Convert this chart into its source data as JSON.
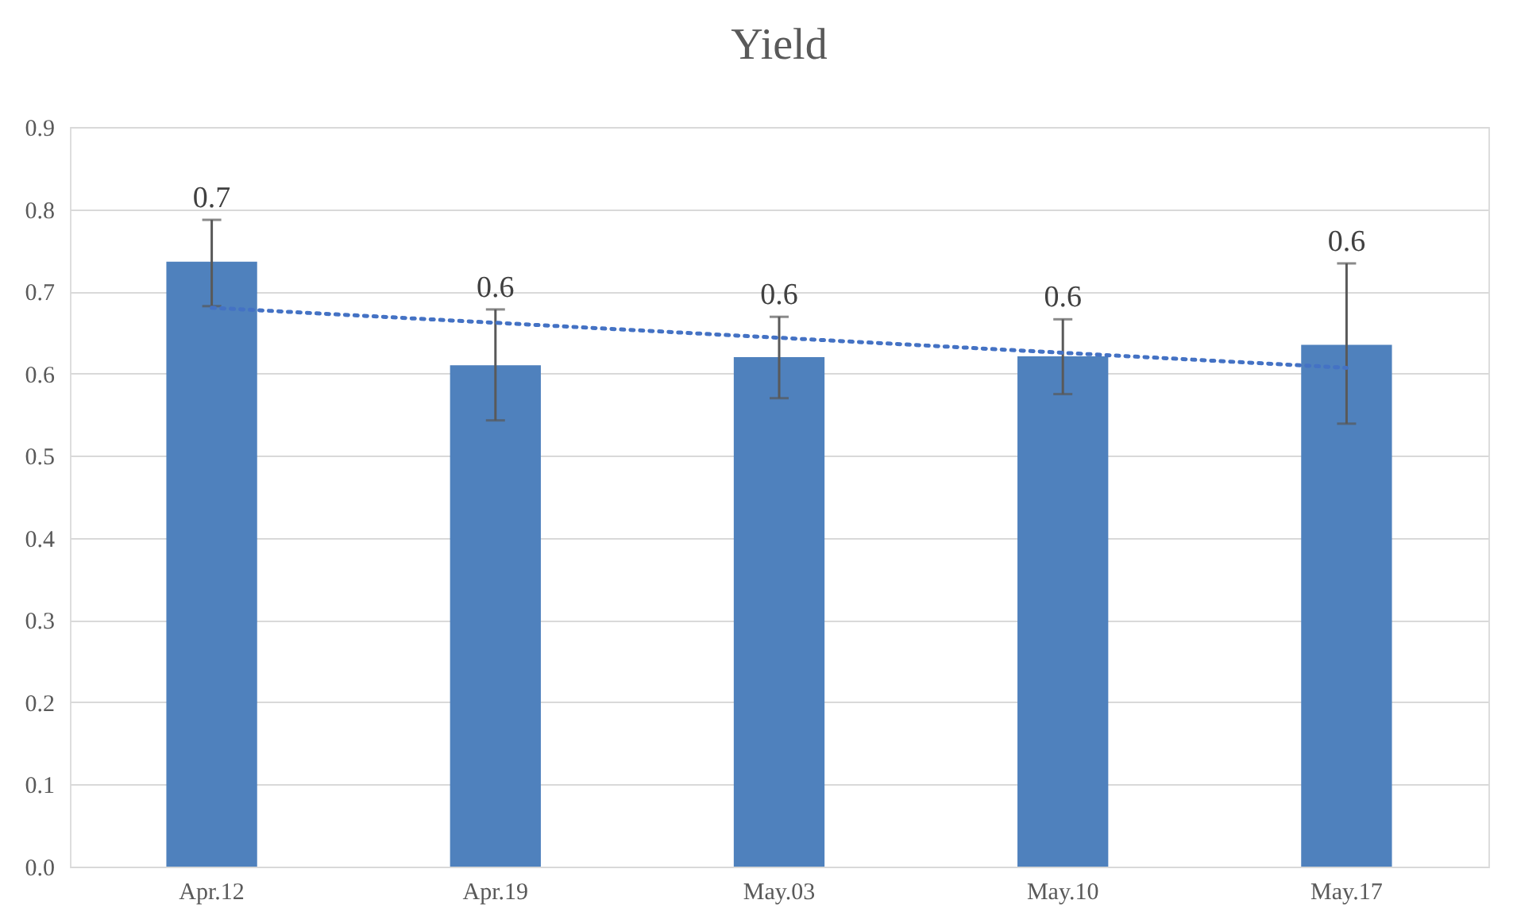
{
  "chart_data": {
    "type": "bar",
    "title": "Yield",
    "categories": [
      "Apr.12",
      "Apr.19",
      "May.03",
      "May.10",
      "May.17"
    ],
    "series": [
      {
        "color": "#4f81bd",
        "values": [
          0.736,
          0.61,
          0.62,
          0.621,
          0.635
        ],
        "errors": [
          [
            0.682,
            0.787
          ],
          [
            0.543,
            0.678
          ],
          [
            0.57,
            0.669
          ],
          [
            0.575,
            0.666
          ],
          [
            0.539,
            0.734
          ]
        ],
        "value_labels": [
          "0.7",
          "0.6",
          "0.6",
          "0.6",
          "0.6"
        ]
      },
      {
        "type": "line",
        "x": [
          "Apr.12",
          "May.17"
        ],
        "values": [
          0.68,
          0.607
        ],
        "color": "#4472c4",
        "line_style": "dotted"
      }
    ],
    "ylim": [
      0,
      0.9
    ],
    "yticks": [
      {
        "value": 0,
        "label": "0.0"
      },
      0.1,
      0.2,
      0.3,
      0.4,
      0.5,
      0.6,
      0.7,
      0.8,
      0.9
    ],
    "grid": "y"
  }
}
